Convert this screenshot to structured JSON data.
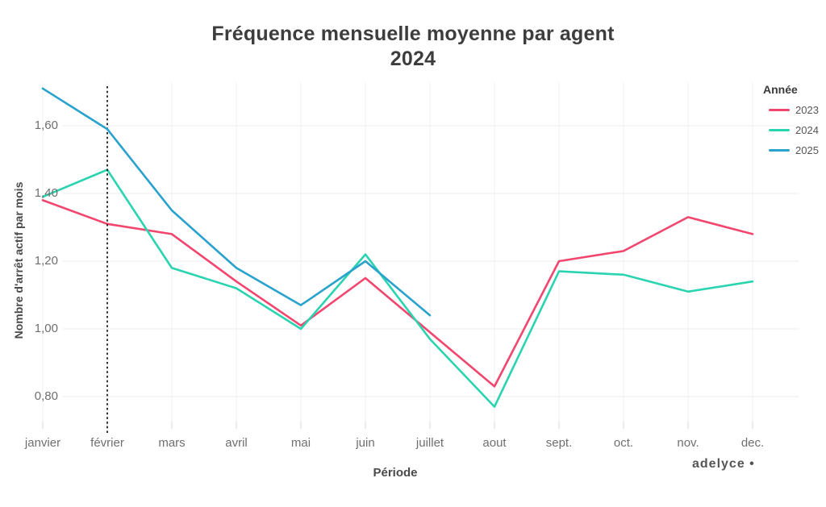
{
  "title": {
    "line1": "Fréquence mensuelle moyenne par agent",
    "line2": "2024"
  },
  "watermark": "adelyce •",
  "legend": {
    "title": "Année",
    "items": [
      {
        "label": "2023",
        "color": "#f2466e"
      },
      {
        "label": "2024",
        "color": "#2bd4b0"
      },
      {
        "label": "2025",
        "color": "#29a2cd"
      }
    ]
  },
  "chart_data": {
    "type": "line",
    "title": "Fréquence mensuelle moyenne par agent",
    "subtitle": "2024",
    "xlabel": "Période",
    "ylabel": "Nombre d'arrêt actif par mois",
    "categories": [
      "janvier",
      "février",
      "mars",
      "avril",
      "mai",
      "juin",
      "juillet",
      "aout",
      "sept.",
      "oct.",
      "nov.",
      "dec."
    ],
    "y_ticks": [
      {
        "value": 0.8,
        "label": "0,80"
      },
      {
        "value": 1.0,
        "label": "1,00"
      },
      {
        "value": 1.2,
        "label": "1,20"
      },
      {
        "value": 1.4,
        "label": "1,40"
      },
      {
        "value": 1.6,
        "label": "1,60"
      }
    ],
    "ylim": [
      0.7,
      1.73
    ],
    "grid": true,
    "legend_position": "right",
    "series": [
      {
        "name": "2023",
        "color": "#f2466e",
        "values": [
          1.38,
          1.31,
          1.28,
          1.14,
          1.01,
          1.15,
          0.99,
          0.83,
          1.2,
          1.23,
          1.33,
          1.28
        ]
      },
      {
        "name": "2024",
        "color": "#2bd4b0",
        "values": [
          1.39,
          1.47,
          1.18,
          1.12,
          1.0,
          1.22,
          0.97,
          0.77,
          1.17,
          1.16,
          1.11,
          1.14
        ]
      },
      {
        "name": "2025",
        "color": "#29a2cd",
        "values": [
          1.71,
          1.59,
          1.35,
          1.18,
          1.07,
          1.2,
          1.04,
          null,
          null,
          null,
          null,
          null
        ]
      }
    ],
    "annotations": [
      {
        "type": "vline",
        "x": "février",
        "style": "dotted",
        "color": "#1c1c1c"
      }
    ]
  }
}
